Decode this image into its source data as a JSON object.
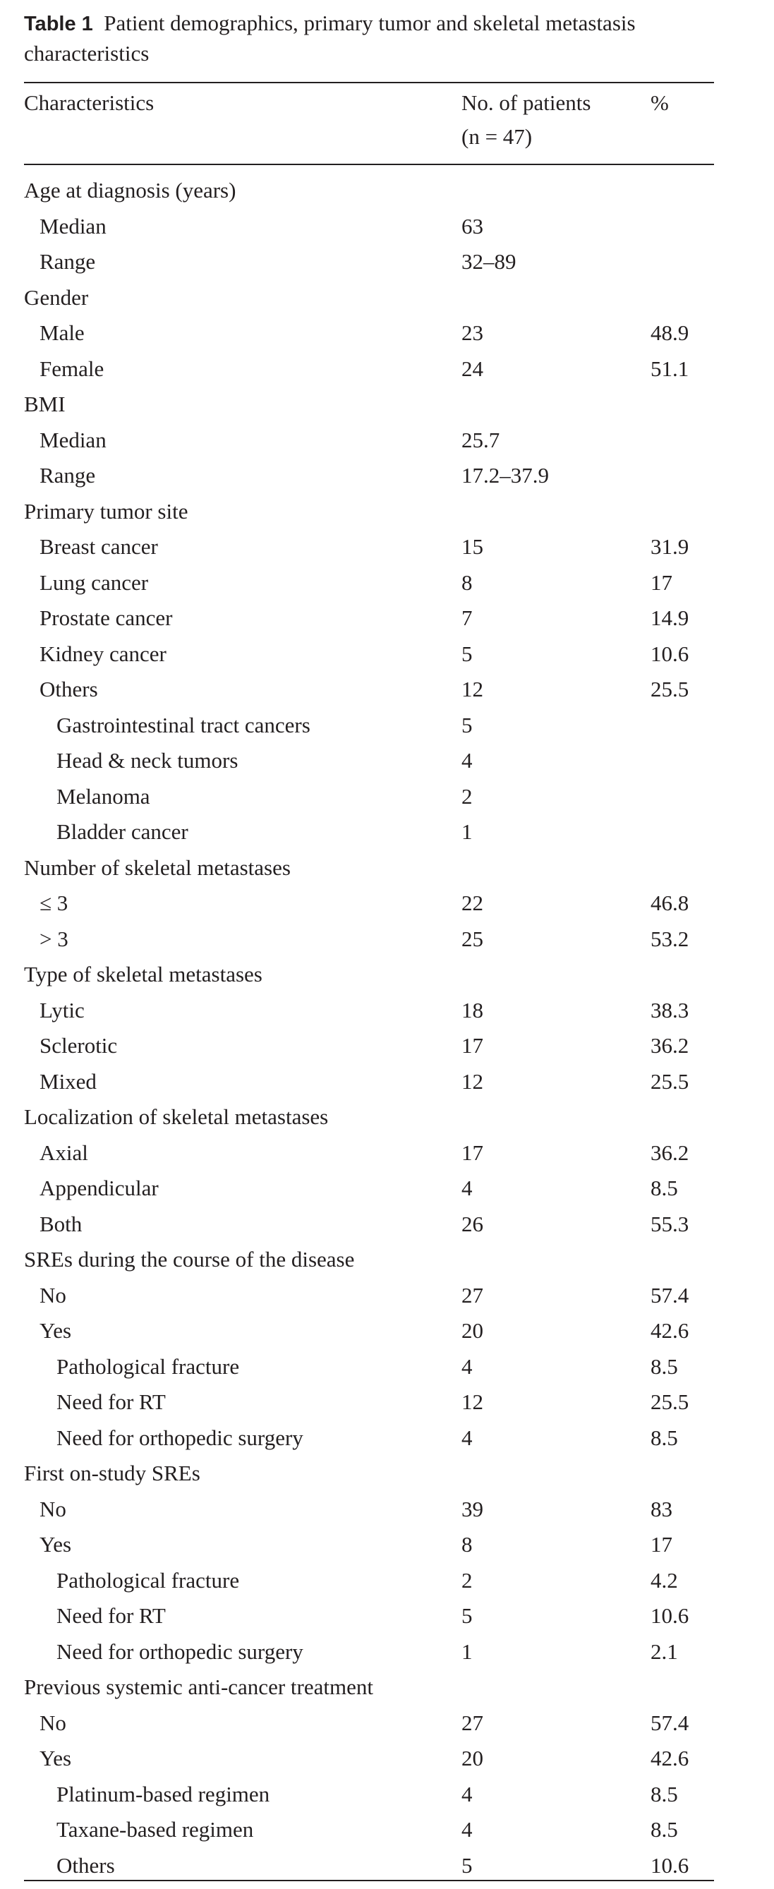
{
  "caption": {
    "label": "Table 1",
    "text": "Patient demographics, primary tumor and skeletal metastasis characteristics"
  },
  "header": {
    "characteristics": "Characteristics",
    "patients": "No. of patients",
    "n": "(n = 47)",
    "percent": "%"
  },
  "rows": [
    {
      "label": "Age at diagnosis (years)",
      "level": 0,
      "n": "",
      "pct": ""
    },
    {
      "label": "Median",
      "level": 1,
      "n": "63",
      "pct": ""
    },
    {
      "label": "Range",
      "level": 1,
      "n": "32–89",
      "pct": ""
    },
    {
      "label": "Gender",
      "level": 0,
      "n": "",
      "pct": ""
    },
    {
      "label": "Male",
      "level": 1,
      "n": "23",
      "pct": "48.9"
    },
    {
      "label": "Female",
      "level": 1,
      "n": "24",
      "pct": "51.1"
    },
    {
      "label": "BMI",
      "level": 0,
      "n": "",
      "pct": ""
    },
    {
      "label": "Median",
      "level": 1,
      "n": "25.7",
      "pct": ""
    },
    {
      "label": "Range",
      "level": 1,
      "n": "17.2–37.9",
      "pct": ""
    },
    {
      "label": "Primary tumor site",
      "level": 0,
      "n": "",
      "pct": ""
    },
    {
      "label": "Breast cancer",
      "level": 1,
      "n": "15",
      "pct": "31.9"
    },
    {
      "label": "Lung cancer",
      "level": 1,
      "n": "8",
      "pct": "17"
    },
    {
      "label": "Prostate cancer",
      "level": 1,
      "n": "7",
      "pct": "14.9"
    },
    {
      "label": "Kidney cancer",
      "level": 1,
      "n": "5",
      "pct": "10.6"
    },
    {
      "label": "Others",
      "level": 1,
      "n": "12",
      "pct": "25.5"
    },
    {
      "label": "Gastrointestinal tract cancers",
      "level": 2,
      "n": "5",
      "pct": ""
    },
    {
      "label": "Head & neck tumors",
      "level": 2,
      "n": "4",
      "pct": ""
    },
    {
      "label": "Melanoma",
      "level": 2,
      "n": "2",
      "pct": ""
    },
    {
      "label": "Bladder cancer",
      "level": 2,
      "n": "1",
      "pct": ""
    },
    {
      "label": "Number of skeletal metastases",
      "level": 0,
      "n": "",
      "pct": ""
    },
    {
      "label": "≤ 3",
      "level": 1,
      "n": "22",
      "pct": "46.8"
    },
    {
      "label": "> 3",
      "level": 1,
      "n": "25",
      "pct": "53.2"
    },
    {
      "label": "Type of skeletal metastases",
      "level": 0,
      "n": "",
      "pct": ""
    },
    {
      "label": "Lytic",
      "level": 1,
      "n": "18",
      "pct": "38.3"
    },
    {
      "label": "Sclerotic",
      "level": 1,
      "n": "17",
      "pct": "36.2"
    },
    {
      "label": "Mixed",
      "level": 1,
      "n": "12",
      "pct": "25.5"
    },
    {
      "label": "Localization of skeletal metastases",
      "level": 0,
      "n": "",
      "pct": ""
    },
    {
      "label": "Axial",
      "level": 1,
      "n": "17",
      "pct": "36.2"
    },
    {
      "label": "Appendicular",
      "level": 1,
      "n": "4",
      "pct": "8.5"
    },
    {
      "label": "Both",
      "level": 1,
      "n": "26",
      "pct": "55.3"
    },
    {
      "label": "SREs during the course of the disease",
      "level": 0,
      "n": "",
      "pct": ""
    },
    {
      "label": "No",
      "level": 1,
      "n": "27",
      "pct": "57.4"
    },
    {
      "label": "Yes",
      "level": 1,
      "n": "20",
      "pct": "42.6"
    },
    {
      "label": "Pathological fracture",
      "level": 2,
      "n": "4",
      "pct": "8.5"
    },
    {
      "label": "Need for RT",
      "level": 2,
      "n": "12",
      "pct": "25.5"
    },
    {
      "label": "Need for orthopedic surgery",
      "level": 2,
      "n": "4",
      "pct": "8.5"
    },
    {
      "label": "First on-study SREs",
      "level": 0,
      "n": "",
      "pct": ""
    },
    {
      "label": "No",
      "level": 1,
      "n": "39",
      "pct": "83"
    },
    {
      "label": "Yes",
      "level": 1,
      "n": "8",
      "pct": "17"
    },
    {
      "label": "Pathological fracture",
      "level": 2,
      "n": "2",
      "pct": "4.2"
    },
    {
      "label": "Need for RT",
      "level": 2,
      "n": "5",
      "pct": "10.6"
    },
    {
      "label": "Need for orthopedic surgery",
      "level": 2,
      "n": "1",
      "pct": "2.1"
    },
    {
      "label": "Previous systemic anti-cancer treatment",
      "level": 0,
      "n": "",
      "pct": ""
    },
    {
      "label": "No",
      "level": 1,
      "n": "27",
      "pct": "57.4"
    },
    {
      "label": "Yes",
      "level": 1,
      "n": "20",
      "pct": "42.6"
    },
    {
      "label": "Platinum-based regimen",
      "level": 2,
      "n": "4",
      "pct": "8.5"
    },
    {
      "label": "Taxane-based regimen",
      "level": 2,
      "n": "4",
      "pct": "8.5"
    },
    {
      "label": "Others",
      "level": 2,
      "n": "5",
      "pct": "10.6"
    }
  ]
}
